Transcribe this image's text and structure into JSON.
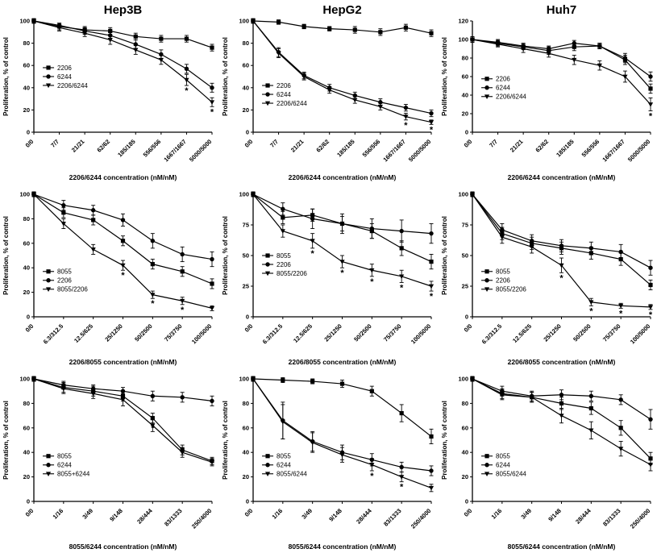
{
  "figure": {
    "column_titles": [
      "Hep3B",
      "HepG2",
      "Huh7"
    ],
    "ylabel": "Proliferation, % of control",
    "line_color": "#000000",
    "background": "#ffffff",
    "significance_symbol": "*"
  },
  "chart_data": [
    {
      "type": "line",
      "title": "Hep3B",
      "xlabel": "2206/6244 concentration (nM/nM)",
      "ylabel": "Proliferation, % of control",
      "categories": [
        "0/0",
        "7/7",
        "21/21",
        "62/62",
        "185/185",
        "556/556",
        "1667/1667",
        "5000/5000"
      ],
      "ylim": [
        0,
        100
      ],
      "ytick_step": 20,
      "grid": false,
      "legend": {
        "x": 0.05,
        "y": 0.42
      },
      "series": [
        {
          "name": "2206",
          "marker": "square",
          "values": [
            100,
            95,
            92,
            91,
            86,
            84,
            84,
            76
          ],
          "errors": [
            2,
            3,
            3,
            3,
            3,
            3,
            3,
            3
          ],
          "stars": []
        },
        {
          "name": "6244",
          "marker": "circle",
          "values": [
            100,
            96,
            91,
            87,
            79,
            70,
            57,
            40
          ],
          "errors": [
            2,
            2,
            3,
            3,
            4,
            4,
            4,
            4
          ],
          "stars": []
        },
        {
          "name": "2206/6244",
          "marker": "triangle",
          "values": [
            100,
            94,
            89,
            83,
            74,
            65,
            47,
            27
          ],
          "errors": [
            2,
            3,
            3,
            4,
            4,
            4,
            5,
            4
          ],
          "stars": [
            6,
            7
          ]
        }
      ]
    },
    {
      "type": "line",
      "title": "HepG2",
      "xlabel": "2206/6244 concentration (nM/nM)",
      "ylabel": "Proliferation, % of control",
      "categories": [
        "0/0",
        "7/7",
        "21/21",
        "62/62",
        "185/185",
        "556/556",
        "1667/1667",
        "5000/5000"
      ],
      "ylim": [
        0,
        100
      ],
      "ytick_step": 20,
      "grid": false,
      "legend": {
        "x": 0.05,
        "y": 0.58
      },
      "series": [
        {
          "name": "2206",
          "marker": "square",
          "values": [
            100,
            99,
            95,
            93,
            92,
            90,
            94,
            89
          ],
          "errors": [
            2,
            2,
            2,
            2,
            3,
            3,
            3,
            3
          ],
          "stars": []
        },
        {
          "name": "6244",
          "marker": "circle",
          "values": [
            100,
            72,
            51,
            40,
            33,
            27,
            22,
            17
          ],
          "errors": [
            2,
            4,
            3,
            3,
            3,
            3,
            3,
            3
          ],
          "stars": []
        },
        {
          "name": "2206/6244",
          "marker": "triangle",
          "values": [
            100,
            71,
            50,
            38,
            29,
            23,
            14,
            9
          ],
          "errors": [
            2,
            4,
            3,
            3,
            3,
            3,
            3,
            2
          ],
          "stars": [
            6,
            7
          ]
        }
      ]
    },
    {
      "type": "line",
      "title": "Huh7",
      "xlabel": "2206/6244 concentration (nM/nM)",
      "ylabel": "Proliferation, % of control",
      "categories": [
        "0/0",
        "7/7",
        "21/21",
        "62/62",
        "185/185",
        "556/556",
        "1667/1667",
        "5000/5000"
      ],
      "ylim": [
        0,
        120
      ],
      "ytick_step": 20,
      "grid": false,
      "legend": {
        "x": 0.05,
        "y": 0.52
      },
      "series": [
        {
          "name": "2206",
          "marker": "square",
          "values": [
            100,
            96,
            92,
            88,
            92,
            93,
            78,
            47
          ],
          "errors": [
            3,
            3,
            3,
            4,
            4,
            3,
            5,
            5
          ],
          "stars": []
        },
        {
          "name": "6244",
          "marker": "circle",
          "values": [
            100,
            97,
            93,
            90,
            96,
            93,
            80,
            60
          ],
          "errors": [
            3,
            3,
            3,
            3,
            3,
            3,
            5,
            5
          ],
          "stars": []
        },
        {
          "name": "2206/6244",
          "marker": "triangle",
          "values": [
            100,
            95,
            90,
            85,
            78,
            72,
            60,
            30
          ],
          "errors": [
            3,
            3,
            4,
            4,
            5,
            5,
            6,
            7
          ],
          "stars": [
            7
          ]
        }
      ]
    },
    {
      "type": "line",
      "title": "",
      "xlabel": "2206/8055 concentration (nM/nM)",
      "ylabel": "Proliferation, % of control",
      "categories": [
        "0/0",
        "6.3/312.5",
        "12.5/625",
        "25/1250",
        "50/2500",
        "75/3750",
        "100/5000"
      ],
      "ylim": [
        0,
        100
      ],
      "ytick_step": 20,
      "grid": false,
      "legend": {
        "x": 0.05,
        "y": 0.63
      },
      "series": [
        {
          "name": "8055",
          "marker": "square",
          "values": [
            100,
            85,
            79,
            62,
            43,
            37,
            27
          ],
          "errors": [
            2,
            4,
            4,
            4,
            4,
            4,
            4
          ],
          "stars": []
        },
        {
          "name": "2206",
          "marker": "circle",
          "values": [
            100,
            91,
            87,
            79,
            62,
            51,
            47
          ],
          "errors": [
            2,
            4,
            4,
            5,
            6,
            6,
            6
          ],
          "stars": []
        },
        {
          "name": "8055/2206",
          "marker": "triangle",
          "values": [
            100,
            76,
            55,
            42,
            18,
            13,
            7
          ],
          "errors": [
            2,
            4,
            4,
            4,
            3,
            3,
            2
          ],
          "stars": [
            3,
            4,
            5
          ]
        }
      ]
    },
    {
      "type": "line",
      "title": "",
      "xlabel": "2206/8055 concentration (nM/nM)",
      "ylabel": "Proliferation, % of control",
      "categories": [
        "0/0",
        "6.3/312.5",
        "12.5/625",
        "25/1250",
        "50/2500",
        "75/3750",
        "100/5000"
      ],
      "ylim": [
        0,
        100
      ],
      "ytick_step": 25,
      "grid": false,
      "legend": {
        "x": 0.05,
        "y": 0.5
      },
      "series": [
        {
          "name": "8055",
          "marker": "square",
          "values": [
            100,
            81,
            83,
            76,
            70,
            56,
            45
          ],
          "errors": [
            2,
            5,
            5,
            6,
            6,
            6,
            6
          ],
          "stars": []
        },
        {
          "name": "2206",
          "marker": "circle",
          "values": [
            100,
            88,
            80,
            76,
            72,
            70,
            68
          ],
          "errors": [
            2,
            5,
            8,
            8,
            8,
            9,
            8
          ],
          "stars": []
        },
        {
          "name": "8055/2206",
          "marker": "triangle",
          "values": [
            100,
            70,
            62,
            45,
            38,
            33,
            25
          ],
          "errors": [
            2,
            5,
            6,
            5,
            5,
            5,
            4
          ],
          "stars": [
            2,
            3,
            4,
            5,
            6
          ]
        }
      ]
    },
    {
      "type": "line",
      "title": "",
      "xlabel": "2206/8055 concentration (nM/nM)",
      "ylabel": "Proliferation, % of control",
      "categories": [
        "0/0",
        "6.3/312.5",
        "12.5/625",
        "25/1250",
        "50/2500",
        "75/3750",
        "100/5000"
      ],
      "ylim": [
        0,
        100
      ],
      "ytick_step": 25,
      "grid": false,
      "legend": {
        "x": 0.05,
        "y": 0.63
      },
      "series": [
        {
          "name": "8055",
          "marker": "square",
          "values": [
            100,
            68,
            60,
            56,
            52,
            47,
            26
          ],
          "errors": [
            2,
            5,
            5,
            5,
            5,
            5,
            4
          ],
          "stars": []
        },
        {
          "name": "2206",
          "marker": "circle",
          "values": [
            100,
            71,
            62,
            58,
            56,
            53,
            40
          ],
          "errors": [
            2,
            5,
            5,
            5,
            5,
            6,
            6
          ],
          "stars": []
        },
        {
          "name": "8055/2206",
          "marker": "triangle",
          "values": [
            100,
            65,
            57,
            42,
            12,
            9,
            8
          ],
          "errors": [
            2,
            5,
            5,
            6,
            3,
            2,
            2
          ],
          "stars": [
            3,
            4,
            5,
            6
          ]
        }
      ]
    },
    {
      "type": "line",
      "title": "",
      "xlabel": "8055/6244 concentration (nM/nM)",
      "ylabel": "Proliferation, % of control",
      "categories": [
        "0/0",
        "1/16",
        "3/49",
        "9/148",
        "28/444",
        "83/1333",
        "250/4000"
      ],
      "ylim": [
        0,
        100
      ],
      "ytick_step": 20,
      "grid": false,
      "legend": {
        "x": 0.05,
        "y": 0.63
      },
      "series": [
        {
          "name": "8055",
          "marker": "square",
          "values": [
            100,
            93,
            90,
            86,
            68,
            42,
            33
          ],
          "errors": [
            2,
            4,
            4,
            4,
            4,
            4,
            3
          ],
          "stars": [
            4
          ]
        },
        {
          "name": "6244",
          "marker": "circle",
          "values": [
            100,
            95,
            92,
            90,
            86,
            85,
            82
          ],
          "errors": [
            2,
            3,
            3,
            3,
            4,
            4,
            4
          ],
          "stars": []
        },
        {
          "name": "8055+6244",
          "marker": "triangle",
          "values": [
            100,
            92,
            88,
            83,
            62,
            40,
            32
          ],
          "errors": [
            2,
            4,
            4,
            5,
            5,
            4,
            3
          ],
          "stars": []
        }
      ]
    },
    {
      "type": "line",
      "title": "",
      "xlabel": "8055/6244 concentration (nM/nM)",
      "ylabel": "Proliferation, % of control",
      "categories": [
        "0/0",
        "1/16",
        "3/49",
        "9/148",
        "28/444",
        "83/1333",
        "250/4000"
      ],
      "ylim": [
        0,
        100
      ],
      "ytick_step": 20,
      "grid": false,
      "legend": {
        "x": 0.05,
        "y": 0.63
      },
      "series": [
        {
          "name": "8055",
          "marker": "square",
          "values": [
            100,
            99,
            98,
            96,
            90,
            72,
            53
          ],
          "errors": [
            2,
            2,
            2,
            3,
            4,
            7,
            6
          ],
          "stars": []
        },
        {
          "name": "6244",
          "marker": "circle",
          "values": [
            100,
            66,
            49,
            40,
            34,
            28,
            25
          ],
          "errors": [
            2,
            15,
            8,
            6,
            5,
            4,
            4
          ],
          "stars": []
        },
        {
          "name": "8055/6244",
          "marker": "triangle",
          "values": [
            100,
            65,
            48,
            38,
            30,
            20,
            11
          ],
          "errors": [
            2,
            14,
            8,
            6,
            5,
            4,
            3
          ],
          "stars": [
            4,
            5
          ]
        }
      ]
    },
    {
      "type": "line",
      "title": "",
      "xlabel": "8055/6244 concentration (nM/nM)",
      "ylabel": "Proliferation, % of control",
      "categories": [
        "0/0",
        "1/16",
        "3/49",
        "9/148",
        "28/444",
        "83/1333",
        "250/4000"
      ],
      "ylim": [
        0,
        100
      ],
      "ytick_step": 20,
      "grid": false,
      "legend": {
        "x": 0.05,
        "y": 0.63
      },
      "series": [
        {
          "name": "8055",
          "marker": "square",
          "values": [
            100,
            88,
            85,
            80,
            76,
            60,
            35
          ],
          "errors": [
            2,
            4,
            4,
            5,
            5,
            6,
            5
          ],
          "stars": []
        },
        {
          "name": "6244",
          "marker": "circle",
          "values": [
            100,
            90,
            86,
            87,
            86,
            83,
            67
          ],
          "errors": [
            2,
            4,
            4,
            4,
            4,
            4,
            8
          ],
          "stars": []
        },
        {
          "name": "8055/6244",
          "marker": "triangle",
          "values": [
            100,
            87,
            85,
            70,
            58,
            43,
            30
          ],
          "errors": [
            2,
            4,
            4,
            6,
            7,
            6,
            5
          ],
          "stars": []
        }
      ]
    }
  ]
}
